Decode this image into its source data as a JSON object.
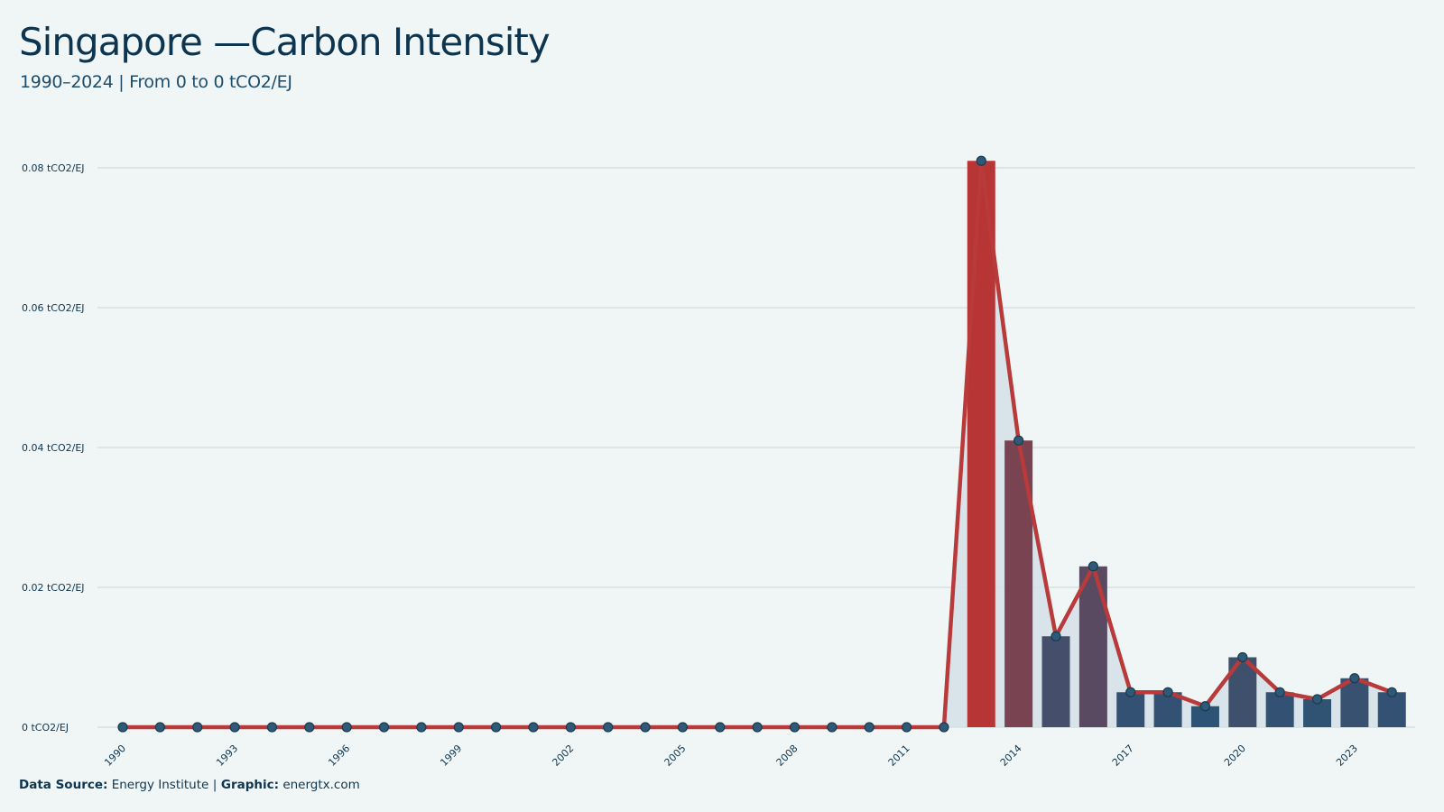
{
  "header": {
    "title": "Singapore —Carbon Intensity",
    "subtitle": "1990–2024 | From 0 to 0 tCO2/EJ"
  },
  "footer": {
    "source_label": "Data Source:",
    "source_value": "Energy Institute",
    "separator": "|",
    "graphic_label": "Graphic:",
    "graphic_value": "energtx.com"
  },
  "colors": {
    "background": "#f0f6f6",
    "text": "#0d3550",
    "line": "#b83a3a",
    "bar_low": "#23567a",
    "bar_high": "#b73535",
    "area_fill": "#d3e1e6",
    "grid": "#d6e0e2",
    "marker": "#2e5a78"
  },
  "chart_data": {
    "type": "bar",
    "combo": "bar+line+area",
    "x": [
      1990,
      1991,
      1992,
      1993,
      1994,
      1995,
      1996,
      1997,
      1998,
      1999,
      2000,
      2001,
      2002,
      2003,
      2004,
      2005,
      2006,
      2007,
      2008,
      2009,
      2010,
      2011,
      2012,
      2013,
      2014,
      2015,
      2016,
      2017,
      2018,
      2019,
      2020,
      2021,
      2022,
      2023,
      2024
    ],
    "values": [
      0,
      0,
      0,
      0,
      0,
      0,
      0,
      0,
      0,
      0,
      0,
      0,
      0,
      0,
      0,
      0,
      0,
      0,
      0,
      0,
      0,
      0,
      0,
      0.081,
      0.041,
      0.013,
      0.023,
      0.005,
      0.005,
      0.003,
      0.01,
      0.005,
      0.004,
      0.007,
      0.005
    ],
    "x_tick_labels": [
      "1990",
      "1993",
      "1996",
      "1999",
      "2002",
      "2005",
      "2008",
      "2011",
      "2014",
      "2017",
      "2020",
      "2023"
    ],
    "x_tick_values": [
      1990,
      1993,
      1996,
      1999,
      2002,
      2005,
      2008,
      2011,
      2014,
      2017,
      2020,
      2023
    ],
    "y_ticks": [
      0,
      0.02,
      0.04,
      0.06,
      0.08
    ],
    "y_tick_labels": [
      "0 tCO2/EJ",
      "0.02 tCO2/EJ",
      "0.04 tCO2/EJ",
      "0.06 tCO2/EJ",
      "0.08 tCO2/EJ"
    ],
    "ylim": [
      0,
      0.08
    ],
    "grid": true,
    "legend": "none"
  }
}
